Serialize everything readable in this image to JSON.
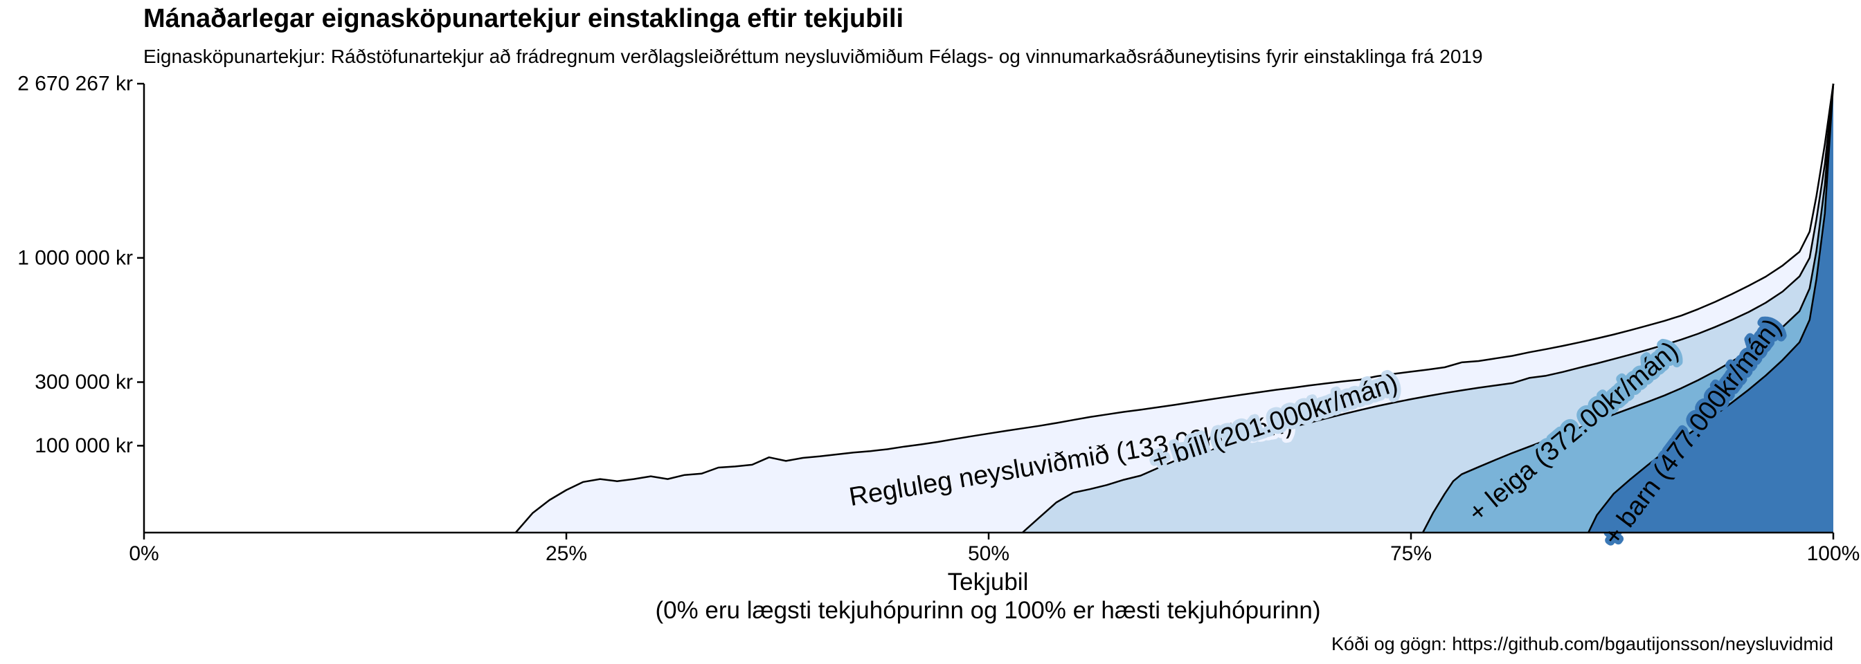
{
  "title": "Mánaðarlegar eignasköpunartekjur einstaklinga eftir tekjubili",
  "subtitle": "Eignasköpunartekjur: Ráðstöfunartekjur að frádregnum verðlagsleiðréttum neysluviðmiðum Félags- og vinnumarkaðsráðuneytisins fyrir einstaklinga frá 2019",
  "caption": "Kóði og gögn: https://github.com/bgautijonsson/neysluvidmid",
  "chart_data": {
    "type": "area",
    "xlabel": "Tekjubil",
    "xlabel_note": "(0% eru lægsti tekjuhópurinn og 100% er hæsti tekjuhópurinn)",
    "xlim": [
      0,
      100
    ],
    "x_ticks": [
      0,
      25,
      50,
      75,
      100
    ],
    "x_tick_labels": [
      "0%",
      "25%",
      "50%",
      "75%",
      "100%"
    ],
    "y_scale": "sqrt",
    "ylim": [
      0,
      2670267
    ],
    "y_ticks": [
      100000,
      300000,
      1000000,
      2670267
    ],
    "y_tick_labels": [
      "100 000 kr",
      "300 000 kr",
      "1 000 000 kr",
      "2 670 267 kr"
    ],
    "grid": false,
    "legend": "none",
    "series": [
      {
        "name": "Regluleg neysluviðmið (133.00kr/mán)",
        "color": "#eff3ff",
        "points": [
          [
            22,
            0
          ],
          [
            23,
            5000
          ],
          [
            24,
            14000
          ],
          [
            25,
            24000
          ],
          [
            26,
            34000
          ],
          [
            27,
            38000
          ],
          [
            28,
            35000
          ],
          [
            29,
            38000
          ],
          [
            30,
            42000
          ],
          [
            31,
            38000
          ],
          [
            32,
            44000
          ],
          [
            33,
            46000
          ],
          [
            34,
            56000
          ],
          [
            35,
            58000
          ],
          [
            36,
            61000
          ],
          [
            37,
            75000
          ],
          [
            38,
            68000
          ],
          [
            39,
            74000
          ],
          [
            40,
            77000
          ],
          [
            41,
            81000
          ],
          [
            42,
            85000
          ],
          [
            43,
            88000
          ],
          [
            44,
            92000
          ],
          [
            45,
            98000
          ],
          [
            46,
            103000
          ],
          [
            47,
            109000
          ],
          [
            48,
            116000
          ],
          [
            49,
            123000
          ],
          [
            50,
            130000
          ],
          [
            51,
            137000
          ],
          [
            52,
            144000
          ],
          [
            53,
            151000
          ],
          [
            54,
            159000
          ],
          [
            55,
            168000
          ],
          [
            56,
            177000
          ],
          [
            57,
            185000
          ],
          [
            58,
            193000
          ],
          [
            59,
            200000
          ],
          [
            60,
            208000
          ],
          [
            61,
            216000
          ],
          [
            62,
            225000
          ],
          [
            63,
            234000
          ],
          [
            64,
            243000
          ],
          [
            65,
            252000
          ],
          [
            66,
            261000
          ],
          [
            67,
            270000
          ],
          [
            68,
            278000
          ],
          [
            69,
            287000
          ],
          [
            70,
            295000
          ],
          [
            71,
            303000
          ],
          [
            72,
            310000
          ],
          [
            73,
            324000
          ],
          [
            74,
            334000
          ],
          [
            75,
            343000
          ],
          [
            76,
            352000
          ],
          [
            77,
            362000
          ],
          [
            78,
            384000
          ],
          [
            79,
            390000
          ],
          [
            80,
            402000
          ],
          [
            81,
            414000
          ],
          [
            82,
            431000
          ],
          [
            83,
            446000
          ],
          [
            84,
            462000
          ],
          [
            85,
            480000
          ],
          [
            86,
            499000
          ],
          [
            87,
            520000
          ],
          [
            88,
            543000
          ],
          [
            89,
            568000
          ],
          [
            90,
            594000
          ],
          [
            91,
            624000
          ],
          [
            92,
            662000
          ],
          [
            93,
            705000
          ],
          [
            94,
            754000
          ],
          [
            95,
            808000
          ],
          [
            96,
            868000
          ],
          [
            97,
            945000
          ],
          [
            98,
            1045000
          ],
          [
            98.6,
            1200000
          ],
          [
            99,
            1500000
          ],
          [
            99.5,
            2000000
          ],
          [
            100,
            2670267
          ]
        ]
      },
      {
        "name": "+ bíll (201.000kr/mán)",
        "color": "#c6dbef",
        "points": [
          [
            52,
            0
          ],
          [
            53,
            3000
          ],
          [
            54,
            12000
          ],
          [
            55,
            21000
          ],
          [
            56,
            25000
          ],
          [
            57,
            30000
          ],
          [
            58,
            37000
          ],
          [
            59,
            43000
          ],
          [
            60,
            55000
          ],
          [
            61,
            68000
          ],
          [
            62,
            74000
          ],
          [
            63,
            90000
          ],
          [
            64,
            98000
          ],
          [
            65,
            114000
          ],
          [
            66,
            124000
          ],
          [
            67,
            136000
          ],
          [
            68,
            148000
          ],
          [
            69,
            160000
          ],
          [
            70,
            173000
          ],
          [
            71,
            186000
          ],
          [
            72,
            199000
          ],
          [
            73,
            212000
          ],
          [
            74,
            224000
          ],
          [
            75,
            236000
          ],
          [
            76,
            247000
          ],
          [
            77,
            258000
          ],
          [
            78,
            268000
          ],
          [
            79,
            278000
          ],
          [
            80,
            287000
          ],
          [
            81,
            296000
          ],
          [
            82,
            317000
          ],
          [
            83,
            326000
          ],
          [
            84,
            342000
          ],
          [
            85,
            361000
          ],
          [
            86,
            379000
          ],
          [
            87,
            399000
          ],
          [
            88,
            420000
          ],
          [
            89,
            443000
          ],
          [
            90,
            467000
          ],
          [
            91,
            494000
          ],
          [
            92,
            524000
          ],
          [
            93,
            560000
          ],
          [
            94,
            600000
          ],
          [
            95,
            645000
          ],
          [
            96,
            700000
          ],
          [
            97,
            770000
          ],
          [
            98,
            870000
          ],
          [
            98.6,
            1000000
          ],
          [
            99,
            1300000
          ],
          [
            99.5,
            1800000
          ],
          [
            100,
            2670267
          ]
        ]
      },
      {
        "name": "+ leiga (372.00kr/mán)",
        "color": "#7ab3d8",
        "points": [
          [
            75.7,
            0
          ],
          [
            76.3,
            5000
          ],
          [
            77,
            20000
          ],
          [
            77.5,
            35000
          ],
          [
            78,
            45000
          ],
          [
            79,
            57000
          ],
          [
            80,
            70000
          ],
          [
            81,
            84000
          ],
          [
            82,
            98000
          ],
          [
            83,
            113000
          ],
          [
            84,
            129000
          ],
          [
            85,
            146000
          ],
          [
            86,
            165000
          ],
          [
            87,
            185000
          ],
          [
            88,
            205000
          ],
          [
            89,
            226000
          ],
          [
            90,
            249000
          ],
          [
            91,
            276000
          ],
          [
            92,
            308000
          ],
          [
            93,
            345000
          ],
          [
            94,
            388000
          ],
          [
            95,
            436000
          ],
          [
            96,
            496000
          ],
          [
            97,
            560000
          ],
          [
            98,
            650000
          ],
          [
            98.6,
            790000
          ],
          [
            99,
            1050000
          ],
          [
            99.5,
            1600000
          ],
          [
            100,
            2670267
          ]
        ]
      },
      {
        "name": "+ barn (477.000kr/mán)",
        "color": "#3a78b6",
        "points": [
          [
            85.5,
            0
          ],
          [
            86,
            4000
          ],
          [
            87,
            20000
          ],
          [
            88,
            38000
          ],
          [
            89,
            60000
          ],
          [
            90,
            86000
          ],
          [
            91,
            115000
          ],
          [
            92,
            147000
          ],
          [
            93,
            183000
          ],
          [
            94,
            224000
          ],
          [
            95,
            271000
          ],
          [
            96,
            327000
          ],
          [
            97,
            395000
          ],
          [
            98,
            480000
          ],
          [
            98.6,
            600000
          ],
          [
            99,
            850000
          ],
          [
            99.5,
            1350000
          ],
          [
            100,
            2670267
          ]
        ]
      }
    ]
  }
}
